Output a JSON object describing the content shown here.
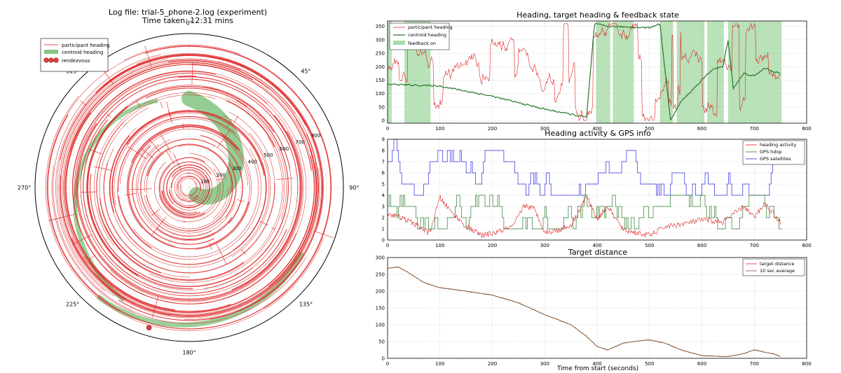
{
  "colors": {
    "red": "#dd2222",
    "green": "#2a7a2a",
    "green_fill": "#88c888",
    "feedback": "#a8dba8",
    "blue": "#2a2ae0",
    "grid": "#aaaaaa",
    "dark": "#6b5a2a"
  },
  "chart_data": [
    {
      "id": "polar",
      "type": "polar",
      "title": "Log file: trial-5_phone-2.log (experiment)",
      "subtitle": "Time taken: 12:31 mins",
      "angle_labels": [
        "0°",
        "45°",
        "90°",
        "135°",
        "180°",
        "225°",
        "270°",
        "315°"
      ],
      "radial_ticks": [
        100,
        200,
        300,
        400,
        500,
        600,
        700,
        800
      ],
      "r_max": 900,
      "legend": [
        "participant heading",
        "centroid heading",
        "rendezvous"
      ],
      "legend_position": "top-left",
      "rendezvous": {
        "angle_deg": 196,
        "r": 852
      }
    },
    {
      "id": "heading",
      "type": "line",
      "title": "Heading, target heading & feedback state",
      "xlim": [
        0,
        800
      ],
      "ylim": [
        -10,
        370
      ],
      "xticks": [
        0,
        100,
        200,
        300,
        400,
        500,
        600,
        700,
        800
      ],
      "yticks": [
        0,
        50,
        100,
        150,
        200,
        250,
        300,
        350
      ],
      "legend": [
        "participant heading",
        "centroid heading",
        "feedback on"
      ],
      "legend_position": "top-left",
      "centroid_heading": {
        "x": [
          0,
          100,
          200,
          300,
          380,
          395,
          420,
          500,
          520,
          540,
          560,
          600,
          620,
          640,
          650,
          660,
          680,
          700,
          720,
          740,
          750
        ],
        "y": [
          135,
          128,
          90,
          42,
          12,
          360,
          350,
          345,
          360,
          0,
          70,
          150,
          190,
          200,
          300,
          120,
          175,
          165,
          195,
          180,
          175
        ]
      },
      "feedback_spans": [
        [
          0,
          8
        ],
        [
          32,
          82
        ],
        [
          398,
          425
        ],
        [
          430,
          470
        ],
        [
          520,
          545
        ],
        [
          552,
          605
        ],
        [
          610,
          642
        ],
        [
          650,
          752
        ]
      ]
    },
    {
      "id": "activity",
      "type": "line",
      "title": "Heading activity & GPS info",
      "xlim": [
        0,
        800
      ],
      "ylim": [
        0,
        9
      ],
      "xticks": [
        0,
        100,
        200,
        300,
        400,
        500,
        600,
        700,
        800
      ],
      "yticks": [
        0,
        1,
        2,
        3,
        4,
        5,
        6,
        7,
        8,
        9
      ],
      "legend": [
        "heading activity",
        "GPS hdop",
        "GPS satellites"
      ],
      "legend_position": "top-right",
      "gps_satellites_range": [
        4,
        9
      ],
      "gps_hdop_range": [
        0.5,
        5
      ],
      "heading_activity": {
        "x": [
          0,
          20,
          50,
          80,
          100,
          120,
          150,
          180,
          210,
          240,
          260,
          280,
          300,
          320,
          350,
          380,
          400,
          420,
          450,
          500,
          530,
          560,
          600,
          640,
          680,
          700,
          720,
          750
        ],
        "y": [
          2.4,
          2.1,
          1.5,
          0.6,
          3.8,
          2.6,
          1.2,
          0.4,
          0.7,
          1.2,
          3.1,
          2.8,
          0.7,
          0.8,
          1.3,
          3.9,
          1.9,
          3.0,
          0.9,
          0.4,
          1.2,
          1.4,
          1.8,
          1.6,
          3.0,
          2.0,
          3.3,
          1.6
        ]
      }
    },
    {
      "id": "distance",
      "type": "line",
      "title": "Target distance",
      "xlabel": "Time from start (seconds)",
      "xlim": [
        0,
        800
      ],
      "ylim": [
        0,
        300
      ],
      "xticks": [
        0,
        100,
        200,
        300,
        400,
        500,
        600,
        700,
        800
      ],
      "yticks": [
        0,
        50,
        100,
        150,
        200,
        250,
        300
      ],
      "legend": [
        "target distance",
        "10 sec average"
      ],
      "legend_position": "top-right",
      "target_distance": {
        "x": [
          0,
          20,
          40,
          70,
          100,
          150,
          200,
          250,
          300,
          350,
          380,
          400,
          420,
          450,
          470,
          500,
          530,
          560,
          600,
          630,
          650,
          680,
          700,
          720,
          740,
          750
        ],
        "y": [
          268,
          272,
          255,
          225,
          210,
          200,
          188,
          165,
          130,
          100,
          65,
          35,
          25,
          45,
          50,
          55,
          45,
          25,
          8,
          6,
          5,
          14,
          25,
          18,
          12,
          5
        ]
      }
    }
  ]
}
